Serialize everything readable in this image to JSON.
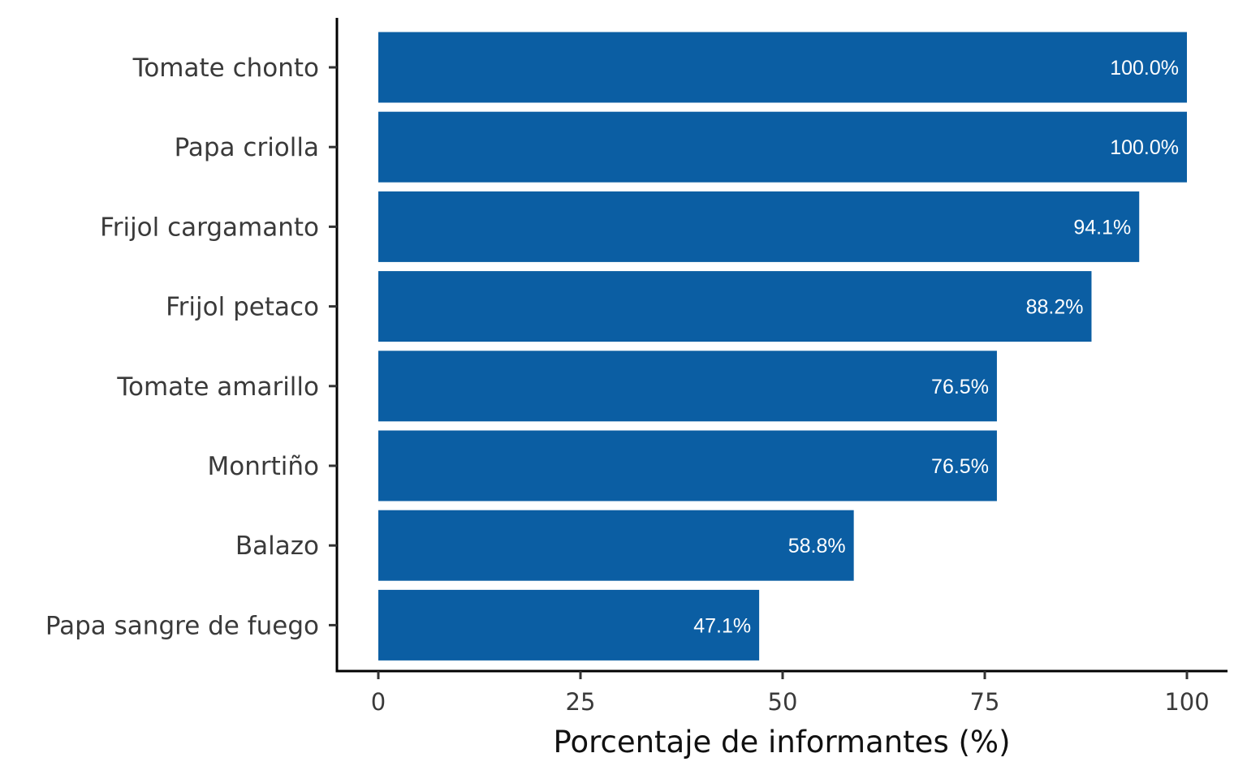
{
  "chart_data": {
    "type": "bar",
    "orientation": "horizontal",
    "categories": [
      "Tomate chonto",
      "Papa criolla",
      "Frijol cargamanto",
      "Frijol petaco",
      "Tomate amarillo",
      "Monrtiño",
      "Balazo",
      "Papa sangre de fuego"
    ],
    "values": [
      100.0,
      100.0,
      94.1,
      88.2,
      76.5,
      76.5,
      58.8,
      47.1
    ],
    "data_labels": [
      "100.0%",
      "100.0%",
      "94.1%",
      "88.2%",
      "76.5%",
      "76.5%",
      "58.8%",
      "47.1%"
    ],
    "xlabel": "Porcentaje de informantes (%)",
    "ylabel": "",
    "xlim": [
      0,
      100
    ],
    "xticks": [
      0,
      25,
      50,
      75,
      100
    ],
    "xtick_labels": [
      "0",
      "25",
      "50",
      "75",
      "100"
    ],
    "grid": false,
    "bar_color": "#0b5ea3",
    "axis_color": "#000000"
  }
}
